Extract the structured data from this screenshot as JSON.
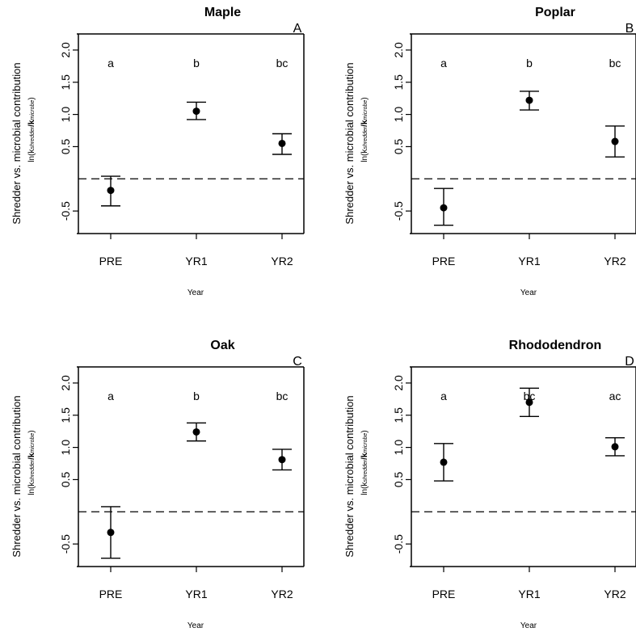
{
  "chart_data": [
    {
      "type": "scatter",
      "title": "Maple",
      "panel_letter": "A",
      "categories": [
        "PRE",
        "YR1",
        "YR2"
      ],
      "values": [
        -0.18,
        1.05,
        0.55
      ],
      "error_low": [
        -0.42,
        0.92,
        0.38
      ],
      "error_high": [
        0.04,
        1.19,
        0.7
      ],
      "significance": [
        "a",
        "b",
        "bc"
      ],
      "xlabel": "Year",
      "ylabel": "Shredder vs. microbial contribution",
      "ylabel_sub": {
        "prefix": "ln(k",
        "sub1": "shredder",
        "slash": "/k",
        "sub2": "microbe",
        "suffix": ")"
      },
      "ylim": [
        -0.85,
        2.25
      ],
      "yticks": [
        "-0.5",
        "0.5",
        "1.0",
        "1.5",
        "2.0"
      ],
      "reference_line": 0
    },
    {
      "type": "scatter",
      "title": "Poplar",
      "panel_letter": "B",
      "categories": [
        "PRE",
        "YR1",
        "YR2"
      ],
      "values": [
        -0.45,
        1.22,
        0.58
      ],
      "error_low": [
        -0.72,
        1.07,
        0.34
      ],
      "error_high": [
        -0.15,
        1.36,
        0.82
      ],
      "significance": [
        "a",
        "b",
        "bc"
      ],
      "xlabel": "Year",
      "ylabel": "Shredder vs. microbial contribution",
      "ylabel_sub": {
        "prefix": "ln(k",
        "sub1": "shredder",
        "slash": "/k",
        "sub2": "microbe",
        "suffix": ")"
      },
      "ylim": [
        -0.85,
        2.25
      ],
      "yticks": [
        "-0.5",
        "0.5",
        "1.0",
        "1.5",
        "2.0"
      ],
      "reference_line": 0
    },
    {
      "type": "scatter",
      "title": "Oak",
      "panel_letter": "C",
      "categories": [
        "PRE",
        "YR1",
        "YR2"
      ],
      "values": [
        -0.32,
        1.24,
        0.81
      ],
      "error_low": [
        -0.72,
        1.1,
        0.65
      ],
      "error_high": [
        0.08,
        1.38,
        0.97
      ],
      "significance": [
        "a",
        "b",
        "bc"
      ],
      "xlabel": "Year",
      "ylabel": "Shredder vs. microbial contribution",
      "ylabel_sub": {
        "prefix": "ln(k",
        "sub1": "shredder",
        "slash": "/k",
        "sub2": "microbe",
        "suffix": ")"
      },
      "ylim": [
        -0.85,
        2.25
      ],
      "yticks": [
        "-0.5",
        "0.5",
        "1.0",
        "1.5",
        "2.0"
      ],
      "reference_line": 0
    },
    {
      "type": "scatter",
      "title": "Rhododendron",
      "panel_letter": "D",
      "categories": [
        "PRE",
        "YR1",
        "YR2"
      ],
      "values": [
        0.77,
        1.7,
        1.01
      ],
      "error_low": [
        0.48,
        1.48,
        0.87
      ],
      "error_high": [
        1.06,
        1.92,
        1.15
      ],
      "significance": [
        "a",
        "bc",
        "ac"
      ],
      "xlabel": "Year",
      "ylabel": "Shredder vs. microbial contribution",
      "ylabel_sub": {
        "prefix": "ln(k",
        "sub1": "shredder",
        "slash": "/k",
        "sub2": "microbe",
        "suffix": ")"
      },
      "ylim": [
        -0.85,
        2.25
      ],
      "yticks": [
        "-0.5",
        "0.5",
        "1.0",
        "1.5",
        "2.0"
      ],
      "reference_line": 0
    }
  ]
}
